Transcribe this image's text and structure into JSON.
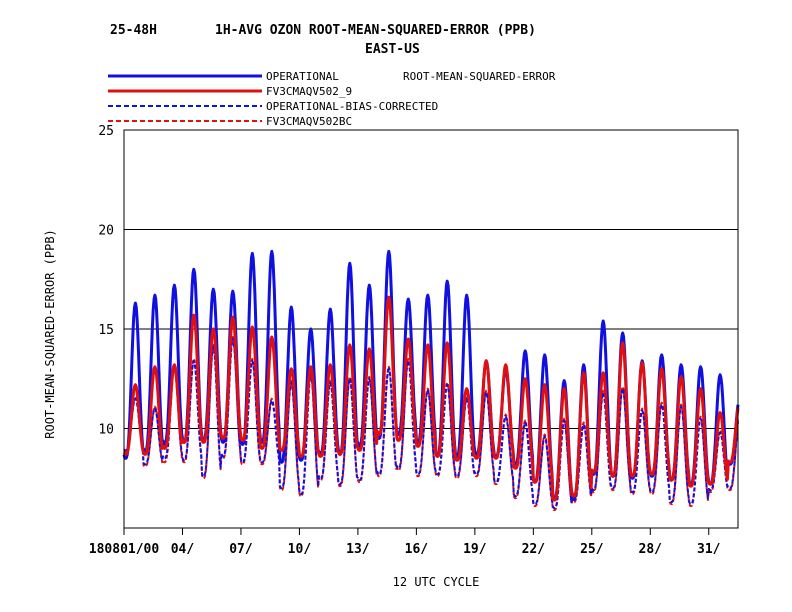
{
  "header": {
    "period": "25-48H",
    "title": "1H-AVG OZON ROOT-MEAN-SQUARED-ERROR (PPB)",
    "region": "EAST-US"
  },
  "legend": {
    "note": "ROOT-MEAN-SQUARED-ERROR",
    "entries": [
      {
        "label": "OPERATIONAL",
        "color": "#1010e0",
        "style": "solid"
      },
      {
        "label": "FV3CMAQV502_9",
        "color": "#e01010",
        "style": "solid"
      },
      {
        "label": "OPERATIONAL-BIAS-CORRECTED",
        "color": "#1010e0",
        "style": "dashed"
      },
      {
        "label": "FV3CMAQV502BC",
        "color": "#e01010",
        "style": "dashed"
      }
    ]
  },
  "chart_data": {
    "type": "line",
    "xlabel": "12 UTC CYCLE",
    "ylabel": "ROOT-MEAN-SQUARED-ERROR (PPB)",
    "ylim": [
      5,
      25
    ],
    "xlim": [
      1,
      32.5
    ],
    "yticks": [
      10,
      15,
      20,
      25
    ],
    "xticks": [
      {
        "day": 1,
        "label": "180801/00"
      },
      {
        "day": 4,
        "label": "04/"
      },
      {
        "day": 7,
        "label": "07/"
      },
      {
        "day": 10,
        "label": "10/"
      },
      {
        "day": 13,
        "label": "13/"
      },
      {
        "day": 16,
        "label": "16/"
      },
      {
        "day": 19,
        "label": "19/"
      },
      {
        "day": 22,
        "label": "22/"
      },
      {
        "day": 25,
        "label": "25/"
      },
      {
        "day": 28,
        "label": "28/"
      },
      {
        "day": 31,
        "label": "31/"
      }
    ],
    "grid_y": true,
    "daily": {
      "days": [
        1,
        2,
        3,
        4,
        5,
        6,
        7,
        8,
        9,
        10,
        11,
        12,
        13,
        14,
        15,
        16,
        17,
        18,
        19,
        20,
        21,
        22,
        23,
        24,
        25,
        26,
        27,
        28,
        29,
        30,
        31,
        32
      ],
      "operational_max": [
        16.3,
        16.7,
        17.2,
        18.0,
        17.0,
        16.9,
        18.8,
        18.9,
        16.1,
        15.0,
        16.0,
        18.3,
        17.2,
        18.9,
        16.5,
        16.7,
        17.4,
        16.7,
        13.4,
        13.0,
        13.9,
        13.7,
        12.4,
        13.2,
        15.4,
        14.8,
        13.4,
        13.7,
        13.2,
        13.1,
        12.7,
        11.5
      ],
      "operational_min": [
        8.5,
        8.8,
        9.2,
        9.3,
        9.4,
        9.3,
        9.2,
        9.3,
        8.3,
        8.4,
        8.7,
        8.7,
        9.1,
        9.5,
        9.7,
        9.3,
        8.6,
        8.6,
        8.7,
        8.6,
        8.2,
        7.3,
        6.5,
        6.5,
        7.7,
        7.6,
        7.5,
        7.6,
        7.4,
        7.2,
        7.2,
        8.2
      ],
      "fv3_max": [
        12.2,
        13.1,
        13.2,
        15.7,
        15.0,
        15.6,
        15.1,
        14.6,
        13.0,
        13.1,
        13.2,
        14.2,
        14.0,
        16.6,
        14.5,
        14.2,
        14.3,
        12.0,
        13.4,
        13.2,
        12.5,
        12.2,
        12.0,
        12.8,
        12.8,
        14.3,
        13.3,
        13.0,
        12.6,
        12.0,
        10.8,
        11.3
      ],
      "fv3_min": [
        8.7,
        8.7,
        9.0,
        9.3,
        9.3,
        9.5,
        9.4,
        9.0,
        8.9,
        8.6,
        8.6,
        8.7,
        8.9,
        9.7,
        9.4,
        9.1,
        8.6,
        8.4,
        8.5,
        8.5,
        8.0,
        7.3,
        6.4,
        6.6,
        7.8,
        7.6,
        7.6,
        7.7,
        7.4,
        7.1,
        7.2,
        8.3
      ],
      "bc_op_max": [
        11.5,
        11.0,
        13.0,
        13.4,
        14.1,
        14.5,
        13.4,
        11.4,
        12.3,
        12.7,
        12.3,
        12.5,
        12.5,
        13.0,
        13.4,
        11.9,
        12.2,
        11.5,
        11.8,
        10.6,
        10.3,
        9.6,
        10.4,
        10.2,
        11.8,
        12.0,
        10.9,
        11.2,
        11.1,
        10.5,
        9.8,
        10.7
      ],
      "bc_op_min": [
        8.9,
        8.2,
        8.5,
        8.4,
        7.6,
        8.6,
        8.3,
        8.3,
        7.0,
        6.7,
        7.5,
        7.2,
        7.4,
        7.7,
        8.0,
        7.7,
        7.7,
        7.6,
        7.7,
        7.3,
        6.6,
        6.2,
        6.0,
        6.4,
        6.9,
        7.0,
        6.8,
        6.8,
        6.3,
        6.2,
        6.9,
        7.0
      ],
      "bc_fv3_max": [
        11.6,
        11.1,
        13.1,
        13.5,
        14.2,
        14.6,
        13.5,
        11.5,
        12.4,
        12.8,
        12.4,
        12.6,
        12.6,
        13.1,
        13.5,
        12.0,
        12.3,
        11.6,
        11.9,
        10.7,
        10.4,
        9.7,
        10.5,
        10.3,
        11.9,
        12.1,
        11.0,
        11.3,
        11.2,
        10.6,
        9.9,
        10.8
      ],
      "bc_fv3_min": [
        8.8,
        8.1,
        8.3,
        8.3,
        7.5,
        8.5,
        8.2,
        8.2,
        6.9,
        6.6,
        7.4,
        7.1,
        7.3,
        7.6,
        7.9,
        7.6,
        7.6,
        7.5,
        7.6,
        7.2,
        6.5,
        6.1,
        5.9,
        6.3,
        6.8,
        6.9,
        6.7,
        6.7,
        6.2,
        6.1,
        6.8,
        6.9
      ]
    },
    "series": [
      {
        "name": "OPERATIONAL",
        "key": "operational",
        "color": "#1010e0",
        "dash": false
      },
      {
        "name": "FV3CMAQV502_9",
        "key": "fv3",
        "color": "#e01010",
        "dash": false
      },
      {
        "name": "OPERATIONAL-BIAS-CORRECTED",
        "key": "bc_op",
        "color": "#1010e0",
        "dash": true
      },
      {
        "name": "FV3CMAQV502BC",
        "key": "bc_fv3",
        "color": "#e01010",
        "dash": true
      }
    ]
  }
}
